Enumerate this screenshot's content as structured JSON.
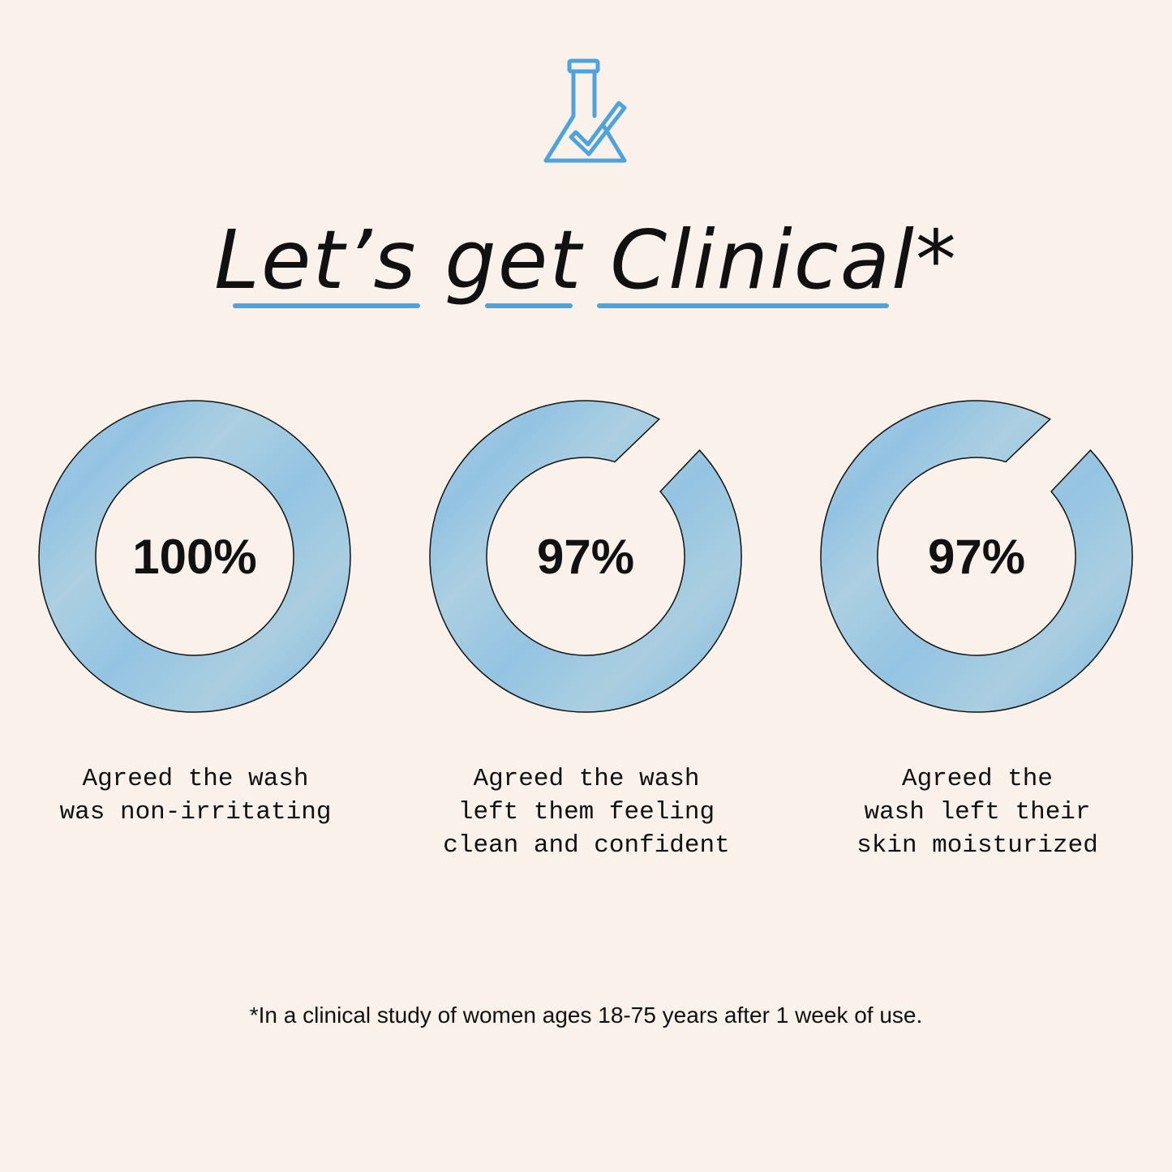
{
  "icon": "flask-check-icon",
  "title": {
    "words": [
      "Let’s",
      "get",
      "Clinical*"
    ],
    "full": "Let’s get Clinical*"
  },
  "colors": {
    "accent": "#4ea3dc",
    "ring": "#a9cde0",
    "ring_stripe": "#8fc2e1",
    "background": "#faf2ea"
  },
  "chart_data": [
    {
      "type": "pie",
      "variant": "donut",
      "value": 100,
      "label": "100%",
      "caption": [
        "Agreed the wash",
        "was non-irritating"
      ]
    },
    {
      "type": "pie",
      "variant": "donut",
      "value": 97,
      "label": "97%",
      "caption": [
        "Agreed the wash",
        "left them feeling",
        "clean and confident"
      ]
    },
    {
      "type": "pie",
      "variant": "donut",
      "value": 97,
      "label": "97%",
      "caption": [
        "Agreed the",
        "wash left their",
        "skin moisturized"
      ]
    }
  ],
  "footnote": "*In a clinical study of women ages 18-75 years after 1 week of use."
}
